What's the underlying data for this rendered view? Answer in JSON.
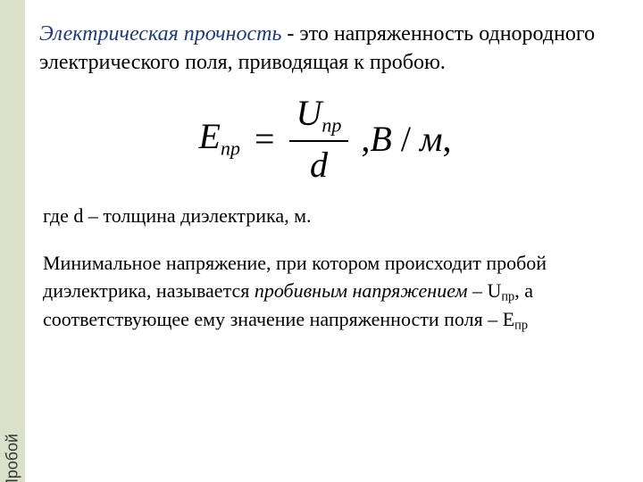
{
  "sidebar": {
    "label": "Пробой",
    "bg_color": "#d9e2c9"
  },
  "definition": {
    "term": "Электрическая прочность",
    "rest": " - это напряженность однородного электрического поля, приводящая к пробою.",
    "term_color": "#1f3b78"
  },
  "formula": {
    "E": "E",
    "E_sub": "np",
    "equals": "=",
    "num_U": "U",
    "num_sub": "np",
    "den": "d",
    "tail_comma": ",",
    "unit_V": "В",
    "unit_slash": " / ",
    "unit_m": "м",
    "tail_comma2": ","
  },
  "where": {
    "text_prefix": "где   ",
    "var": "d",
    "text_rest": " – толщина диэлектрика, м."
  },
  "paragraph": {
    "p1": "Минимальное напряжение, при котором происходит пробой диэлектрика, называется ",
    "ital": "пробивным напряжением",
    "p2": " – U",
    "sub1": "пр",
    "p3": ", а соответствующее ему значение напряженности поля – Е",
    "sub2": "пр"
  }
}
